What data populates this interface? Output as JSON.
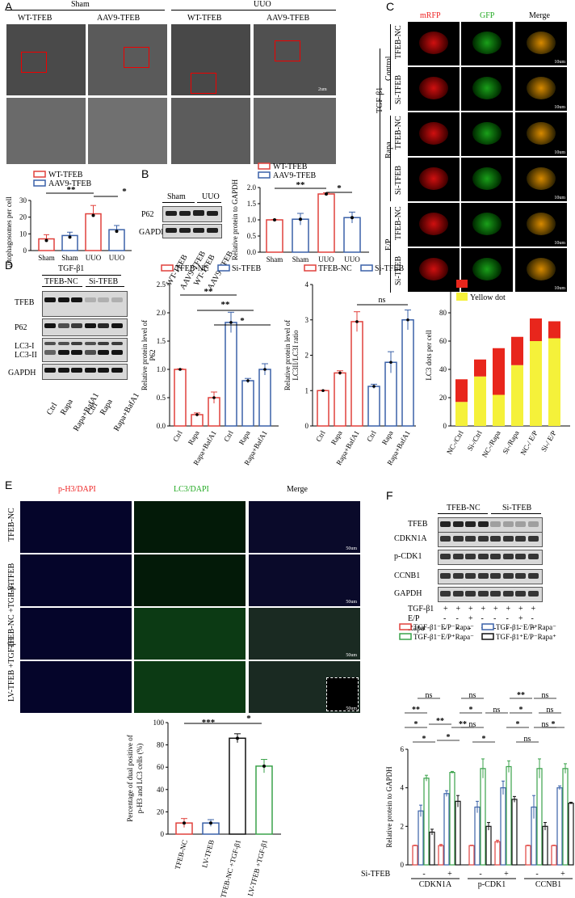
{
  "panels": {
    "A": "A",
    "B": "B",
    "C": "C",
    "D": "D",
    "E": "E",
    "F": "F"
  },
  "panelA": {
    "groups": [
      "Sham",
      "UUO"
    ],
    "columns": [
      "WT-TFEB",
      "AAV9-TFEB",
      "WT-TFEB",
      "AAV9-TFEB"
    ],
    "scalebar": "2um",
    "chart_data": {
      "type": "bar",
      "categories": [
        "Sham",
        "Sham",
        "UUO",
        "UUO"
      ],
      "series": [
        {
          "name": "WT-TFEB",
          "color": "#e0413c"
        },
        {
          "name": "AAV9-TFEB",
          "color": "#3a61a8"
        }
      ],
      "values": [
        7,
        9,
        22,
        12.5
      ],
      "errors": [
        2.5,
        2,
        5,
        2.5
      ],
      "ylabel": "Autophagosomes per cell",
      "ylim": [
        0,
        30
      ],
      "yticks": [
        "0",
        "10",
        "20",
        "30"
      ],
      "significance": [
        "**",
        "*"
      ]
    }
  },
  "panelB": {
    "blot_header": [
      "Sham",
      "UUO"
    ],
    "rows": [
      "P62",
      "GAPDH"
    ],
    "lanes": [
      "WT-TFEB",
      "AAV9-TFEB",
      "WT-TFEB",
      "AAV9-TFEB"
    ],
    "chart_data": {
      "type": "bar",
      "categories": [
        "Sham",
        "Sham",
        "UUO",
        "UUO"
      ],
      "series": [
        {
          "name": "WT-TFEB",
          "color": "#e0413c"
        },
        {
          "name": "AAV9-TFEB",
          "color": "#3a61a8"
        }
      ],
      "values": [
        1.0,
        1.02,
        1.8,
        1.07
      ],
      "errors": [
        0.01,
        0.18,
        0.04,
        0.17
      ],
      "ylabel": "Relative protein to GAPDH",
      "ylim": [
        0,
        2.0
      ],
      "yticks": [
        "0.0",
        "0.5",
        "1.0",
        "1.5",
        "2.0"
      ],
      "significance": [
        "**",
        "*"
      ]
    }
  },
  "panelC": {
    "columns": [
      "mRFP",
      "GFP",
      "Merge"
    ],
    "rows": [
      "TFEB-NC",
      "Si-TFEB",
      "TFEB-NC",
      "Si-TFEB",
      "TFEB-NC",
      "Si-TFEB"
    ],
    "groups": [
      "Control",
      "Rapa",
      "E/P"
    ],
    "outer": "TGF-β1",
    "scalebar": "10um"
  },
  "panelD": {
    "header": "TGF-β1",
    "blot_groups": [
      "TFEB-NC",
      "Si-TFEB"
    ],
    "rows": [
      "TFEB",
      "P62",
      "LC3-I",
      "LC3-II",
      "GAPDH"
    ],
    "lanes": [
      "Ctrl",
      "Rapa",
      "Rapa+BafA1",
      "Ctrl",
      "Rapa",
      "Rapa+BafA1"
    ],
    "legend": [
      "TFEB-NC",
      "Si-TFEB"
    ],
    "chart1": {
      "type": "bar",
      "categories": [
        "Ctrl",
        "Rapa",
        "Rapa+BafA1",
        "Ctrl",
        "Rapa",
        "Rapa+BafA1"
      ],
      "values": [
        1.0,
        0.2,
        0.5,
        1.83,
        0.8,
        1.0
      ],
      "errors": [
        0.01,
        0.03,
        0.1,
        0.18,
        0.04,
        0.1
      ],
      "ylabel": "Relative protein level of P62",
      "ylim": [
        0,
        2.5
      ],
      "yticks": [
        "0.0",
        "0.5",
        "1.0",
        "1.5",
        "2.0",
        "2.5"
      ],
      "significance": [
        "**",
        "**",
        "*"
      ]
    },
    "chart2": {
      "type": "bar",
      "categories": [
        "Ctrl",
        "Rapa",
        "Rapa+BafA1",
        "Ctrl",
        "Rapa",
        "Rapa+BafA1"
      ],
      "values": [
        1.0,
        1.5,
        2.95,
        1.12,
        1.8,
        3.0
      ],
      "errors": [
        0.01,
        0.06,
        0.28,
        0.06,
        0.3,
        0.28
      ],
      "ylabel": "Relative protein level of LC3II/LC3I ratio",
      "ylim": [
        0,
        4
      ],
      "yticks": [
        "0",
        "1",
        "2",
        "3",
        "4"
      ],
      "significance": [
        "ns"
      ]
    },
    "chart3": {
      "type": "bar",
      "categories": [
        "NC-/Ctrl",
        "Si-/Ctrl",
        "NC-/Rapa",
        "Si-/Rapa",
        "NC-/ E/P",
        "Si-/ E/P"
      ],
      "series": [
        {
          "name": "Red dot",
          "color": "#e8261c",
          "values": [
            16,
            12,
            33,
            20,
            16,
            12
          ]
        },
        {
          "name": "Yellow dot",
          "color": "#f5f13a",
          "values": [
            17,
            35,
            22,
            43,
            60,
            62
          ]
        }
      ],
      "ylabel": "LC3 dots per cell",
      "ylim": [
        0,
        100
      ],
      "yticks": [
        "0",
        "20",
        "40",
        "60",
        "80",
        "100"
      ]
    }
  },
  "panelE": {
    "columns": [
      "p-H3/DAPI",
      "LC3/DAPI",
      "Merge"
    ],
    "rows": [
      "TFEB-NC",
      "LV-TFEB",
      "TFEB-NC +TGF-β1",
      "LV-TFEB +TGF-β1"
    ],
    "scalebar": "50um",
    "chart_data": {
      "type": "bar",
      "categories": [
        "TFEB-NC",
        "LV-TFEB",
        "TFEB-NC +TGF-β1",
        "LV-TFEB +TGF-β1"
      ],
      "colors": [
        "#e0413c",
        "#3a61a8",
        "#111111",
        "#3aa24a"
      ],
      "values": [
        10,
        10,
        86,
        61
      ],
      "errors": [
        4,
        3,
        4,
        6
      ],
      "ylabel": "Percentage of dual positive of p-H3 and LC3 cells (%)",
      "ylim": [
        0,
        100
      ],
      "yticks": [
        "0",
        "20",
        "40",
        "60",
        "80",
        "100"
      ],
      "significance": [
        "***",
        "*"
      ]
    }
  },
  "panelF": {
    "blot_groups": [
      "TFEB-NC",
      "Si-TFEB"
    ],
    "rows": [
      "TFEB",
      "CDKN1A",
      "p-CDK1",
      "CCNB1",
      "GAPDH"
    ],
    "treatments": [
      {
        "label": "TGF-β1",
        "signs": [
          "+",
          "+",
          "+",
          "+",
          "+",
          "+",
          "+",
          "+"
        ]
      },
      {
        "label": "E/P",
        "signs": [
          "-",
          "-",
          "+",
          "-",
          "-",
          "-",
          "+",
          "-"
        ]
      },
      {
        "label": "Rapa",
        "signs": [
          "-",
          "-",
          "-",
          "+",
          "-",
          "-",
          "-",
          "+"
        ]
      }
    ],
    "chart_data": {
      "type": "bar",
      "legend": [
        {
          "name": "TGF-β1⁻E/P⁻Rapa⁻",
          "color": "#e0413c"
        },
        {
          "name": "TGF-β1⁻E/P⁺Rapa⁻",
          "color": "#3a61a8"
        },
        {
          "name": "TGF-β1⁻E/P⁺Rapa⁻",
          "color": "#3aa24a"
        },
        {
          "name": "TGF-β1⁺E/P⁻Rapa⁺",
          "color": "#111111"
        }
      ],
      "groups": [
        "CDKN1A",
        "p-CDK1",
        "CCNB1"
      ],
      "sitfeb_label": "Si-TFEB",
      "sitfeb_signs": [
        "-",
        "+",
        "-",
        "+",
        "-",
        "+"
      ],
      "values": [
        [
          1.0,
          2.8,
          4.5,
          1.7
        ],
        [
          1.0,
          3.7,
          4.8,
          3.3
        ],
        [
          1.0,
          3.0,
          5.0,
          2.0
        ],
        [
          1.2,
          4.0,
          5.1,
          3.4
        ],
        [
          1.0,
          3.0,
          5.0,
          2.0
        ],
        [
          1.0,
          4.0,
          5.0,
          3.2
        ]
      ],
      "errors": [
        [
          0.02,
          0.3,
          0.15,
          0.15
        ],
        [
          0.06,
          0.15,
          0.05,
          0.3
        ],
        [
          0.02,
          0.3,
          0.5,
          0.2
        ],
        [
          0.08,
          0.35,
          0.3,
          0.15
        ],
        [
          0.02,
          0.6,
          0.5,
          0.2
        ],
        [
          0.02,
          0.1,
          0.25,
          0.05
        ]
      ],
      "ylabel": "Relative protein to GAPDH",
      "ylim": [
        0,
        6
      ],
      "yticks": [
        "0",
        "2",
        "4",
        "6"
      ],
      "significance": [
        "**",
        "*",
        "*",
        "ns",
        "**",
        "*",
        "ns",
        "*",
        "ns",
        "**",
        "*",
        "ns",
        "**",
        "*",
        "*",
        "ns",
        "ns",
        "ns",
        "ns",
        "*"
      ]
    }
  }
}
